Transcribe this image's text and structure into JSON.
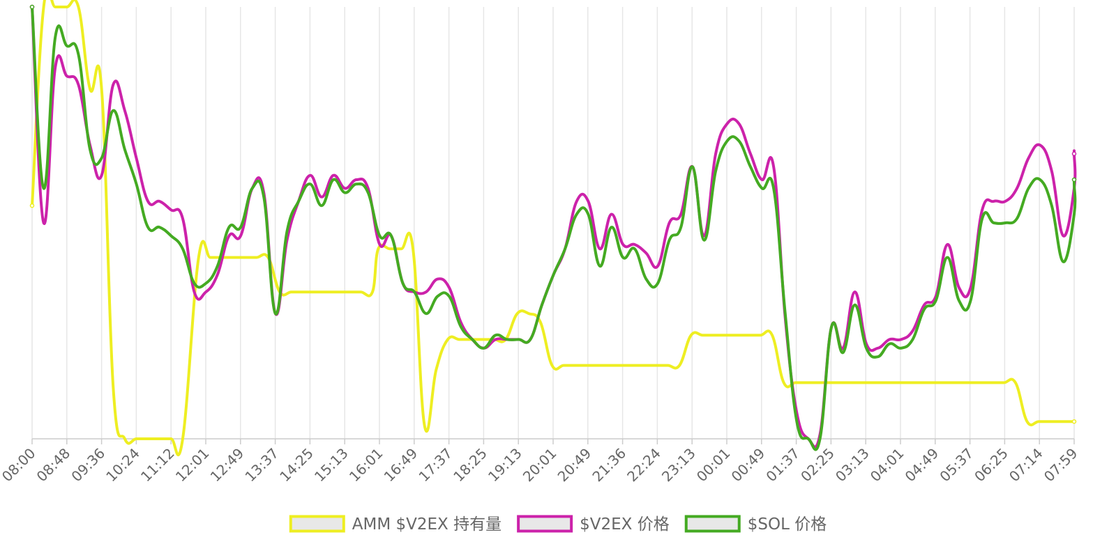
{
  "chart_data": {
    "type": "line",
    "title": "",
    "xlabel": "",
    "ylabel": "",
    "categories": [
      "08:00",
      "08:48",
      "09:36",
      "10:24",
      "11:12",
      "12:01",
      "12:49",
      "13:37",
      "14:25",
      "15:13",
      "16:01",
      "16:49",
      "17:37",
      "18:25",
      "19:13",
      "20:01",
      "20:49",
      "21:36",
      "22:24",
      "23:13",
      "00:01",
      "00:49",
      "01:37",
      "02:25",
      "03:13",
      "04:01",
      "04:49",
      "05:37",
      "06:25",
      "07:14",
      "07:59"
    ],
    "x_range": [
      0,
      1439
    ],
    "grid": true,
    "legend_position": "bottom-center",
    "series": [
      {
        "name": "AMM $V2EX 持有量",
        "color": "#eeee22",
        "values": [
          [
            0,
            54
          ],
          [
            16,
            100
          ],
          [
            32,
            100
          ],
          [
            48,
            100
          ],
          [
            64,
            100
          ],
          [
            80,
            81
          ],
          [
            96,
            81
          ],
          [
            112,
            12
          ],
          [
            128,
            0
          ],
          [
            144,
            0
          ],
          [
            160,
            0
          ],
          [
            176,
            0
          ],
          [
            192,
            0
          ],
          [
            208,
            0
          ],
          [
            230,
            42
          ],
          [
            246,
            42
          ],
          [
            262,
            42
          ],
          [
            278,
            42
          ],
          [
            294,
            42
          ],
          [
            310,
            42
          ],
          [
            326,
            42
          ],
          [
            342,
            34
          ],
          [
            358,
            34
          ],
          [
            374,
            34
          ],
          [
            390,
            34
          ],
          [
            406,
            34
          ],
          [
            422,
            34
          ],
          [
            438,
            34
          ],
          [
            454,
            34
          ],
          [
            470,
            34
          ],
          [
            478,
            44
          ],
          [
            494,
            44
          ],
          [
            510,
            44
          ],
          [
            526,
            44
          ],
          [
            542,
            3
          ],
          [
            558,
            16
          ],
          [
            574,
            23
          ],
          [
            590,
            23
          ],
          [
            606,
            23
          ],
          [
            622,
            23
          ],
          [
            638,
            23
          ],
          [
            654,
            23
          ],
          [
            670,
            29
          ],
          [
            686,
            29
          ],
          [
            702,
            27
          ],
          [
            718,
            17
          ],
          [
            734,
            17
          ],
          [
            750,
            17
          ],
          [
            766,
            17
          ],
          [
            782,
            17
          ],
          [
            798,
            17
          ],
          [
            814,
            17
          ],
          [
            830,
            17
          ],
          [
            846,
            17
          ],
          [
            862,
            17
          ],
          [
            878,
            17
          ],
          [
            894,
            17
          ],
          [
            910,
            24
          ],
          [
            926,
            24
          ],
          [
            942,
            24
          ],
          [
            958,
            24
          ],
          [
            974,
            24
          ],
          [
            990,
            24
          ],
          [
            1006,
            24
          ],
          [
            1022,
            24
          ],
          [
            1038,
            13
          ],
          [
            1054,
            13
          ],
          [
            1070,
            13
          ],
          [
            1086,
            13
          ],
          [
            1102,
            13
          ],
          [
            1118,
            13
          ],
          [
            1134,
            13
          ],
          [
            1150,
            13
          ],
          [
            1166,
            13
          ],
          [
            1182,
            13
          ],
          [
            1198,
            13
          ],
          [
            1214,
            13
          ],
          [
            1230,
            13
          ],
          [
            1246,
            13
          ],
          [
            1262,
            13
          ],
          [
            1278,
            13
          ],
          [
            1294,
            13
          ],
          [
            1310,
            13
          ],
          [
            1326,
            13
          ],
          [
            1342,
            13
          ],
          [
            1358,
            13
          ],
          [
            1374,
            4
          ],
          [
            1390,
            4
          ],
          [
            1406,
            4
          ],
          [
            1422,
            4
          ],
          [
            1439,
            4
          ]
        ]
      },
      {
        "name": "$V2EX 价格",
        "color": "#cc22aa",
        "values": [
          [
            0,
            100
          ],
          [
            16,
            50
          ],
          [
            32,
            86
          ],
          [
            48,
            84
          ],
          [
            64,
            82
          ],
          [
            80,
            68
          ],
          [
            96,
            61
          ],
          [
            112,
            82
          ],
          [
            128,
            76
          ],
          [
            144,
            65
          ],
          [
            160,
            55
          ],
          [
            176,
            55
          ],
          [
            192,
            53
          ],
          [
            208,
            51
          ],
          [
            224,
            34
          ],
          [
            240,
            34
          ],
          [
            256,
            38
          ],
          [
            272,
            47
          ],
          [
            288,
            47
          ],
          [
            304,
            58
          ],
          [
            320,
            57
          ],
          [
            336,
            29
          ],
          [
            352,
            46
          ],
          [
            368,
            55
          ],
          [
            384,
            61
          ],
          [
            400,
            56
          ],
          [
            416,
            61
          ],
          [
            432,
            58
          ],
          [
            448,
            60
          ],
          [
            464,
            58
          ],
          [
            480,
            45
          ],
          [
            496,
            47
          ],
          [
            512,
            36
          ],
          [
            528,
            34
          ],
          [
            544,
            34
          ],
          [
            560,
            37
          ],
          [
            576,
            35
          ],
          [
            592,
            27
          ],
          [
            608,
            23
          ],
          [
            624,
            21
          ],
          [
            640,
            23
          ],
          [
            656,
            23
          ],
          [
            672,
            23
          ],
          [
            688,
            23
          ],
          [
            704,
            31
          ],
          [
            720,
            38
          ],
          [
            736,
            44
          ],
          [
            752,
            55
          ],
          [
            768,
            55
          ],
          [
            784,
            44
          ],
          [
            800,
            52
          ],
          [
            816,
            45
          ],
          [
            832,
            45
          ],
          [
            848,
            43
          ],
          [
            864,
            40
          ],
          [
            880,
            50
          ],
          [
            896,
            52
          ],
          [
            912,
            63
          ],
          [
            928,
            47
          ],
          [
            944,
            66
          ],
          [
            960,
            73
          ],
          [
            976,
            73
          ],
          [
            992,
            66
          ],
          [
            1008,
            60
          ],
          [
            1024,
            63
          ],
          [
            1040,
            28
          ],
          [
            1056,
            6
          ],
          [
            1072,
            0
          ],
          [
            1088,
            1
          ],
          [
            1104,
            26
          ],
          [
            1120,
            21
          ],
          [
            1136,
            34
          ],
          [
            1152,
            22
          ],
          [
            1168,
            21
          ],
          [
            1184,
            23
          ],
          [
            1200,
            23
          ],
          [
            1216,
            25
          ],
          [
            1232,
            31
          ],
          [
            1248,
            33
          ],
          [
            1264,
            45
          ],
          [
            1280,
            35
          ],
          [
            1296,
            35
          ],
          [
            1312,
            53
          ],
          [
            1328,
            55
          ],
          [
            1344,
            55
          ],
          [
            1360,
            58
          ],
          [
            1376,
            65
          ],
          [
            1392,
            68
          ],
          [
            1408,
            62
          ],
          [
            1424,
            47
          ],
          [
            1440,
            58
          ],
          [
            1456,
            66
          ],
          [
            1472,
            66
          ],
          [
            1488,
            66
          ]
        ]
      },
      {
        "name": "$SOL 价格",
        "color": "#44aa22",
        "values": [
          [
            0,
            100
          ],
          [
            16,
            58
          ],
          [
            32,
            93
          ],
          [
            48,
            91
          ],
          [
            64,
            89
          ],
          [
            80,
            67
          ],
          [
            96,
            65
          ],
          [
            112,
            76
          ],
          [
            128,
            67
          ],
          [
            144,
            59
          ],
          [
            160,
            49
          ],
          [
            176,
            49
          ],
          [
            192,
            47
          ],
          [
            208,
            44
          ],
          [
            224,
            36
          ],
          [
            240,
            36
          ],
          [
            256,
            40
          ],
          [
            272,
            49
          ],
          [
            288,
            49
          ],
          [
            304,
            58
          ],
          [
            320,
            56
          ],
          [
            336,
            29
          ],
          [
            352,
            48
          ],
          [
            368,
            55
          ],
          [
            384,
            59
          ],
          [
            400,
            54
          ],
          [
            416,
            60
          ],
          [
            432,
            57
          ],
          [
            448,
            59
          ],
          [
            464,
            57
          ],
          [
            480,
            47
          ],
          [
            496,
            47
          ],
          [
            512,
            36
          ],
          [
            528,
            34
          ],
          [
            544,
            29
          ],
          [
            560,
            33
          ],
          [
            576,
            33
          ],
          [
            592,
            26
          ],
          [
            608,
            23
          ],
          [
            624,
            21
          ],
          [
            640,
            24
          ],
          [
            656,
            23
          ],
          [
            672,
            23
          ],
          [
            688,
            23
          ],
          [
            704,
            31
          ],
          [
            720,
            38
          ],
          [
            736,
            44
          ],
          [
            752,
            52
          ],
          [
            768,
            52
          ],
          [
            784,
            40
          ],
          [
            800,
            49
          ],
          [
            816,
            42
          ],
          [
            832,
            44
          ],
          [
            848,
            37
          ],
          [
            864,
            36
          ],
          [
            880,
            46
          ],
          [
            896,
            49
          ],
          [
            912,
            63
          ],
          [
            928,
            46
          ],
          [
            944,
            62
          ],
          [
            960,
            69
          ],
          [
            976,
            69
          ],
          [
            992,
            63
          ],
          [
            1008,
            58
          ],
          [
            1024,
            58
          ],
          [
            1040,
            29
          ],
          [
            1056,
            4
          ],
          [
            1072,
            0
          ],
          [
            1088,
            0
          ],
          [
            1104,
            26
          ],
          [
            1120,
            20
          ],
          [
            1136,
            31
          ],
          [
            1152,
            21
          ],
          [
            1168,
            19
          ],
          [
            1184,
            22
          ],
          [
            1200,
            21
          ],
          [
            1216,
            23
          ],
          [
            1232,
            30
          ],
          [
            1248,
            32
          ],
          [
            1264,
            42
          ],
          [
            1280,
            32
          ],
          [
            1296,
            32
          ],
          [
            1312,
            51
          ],
          [
            1328,
            50
          ],
          [
            1344,
            50
          ],
          [
            1360,
            51
          ],
          [
            1376,
            58
          ],
          [
            1392,
            60
          ],
          [
            1408,
            54
          ],
          [
            1424,
            41
          ],
          [
            1440,
            52
          ],
          [
            1456,
            59
          ],
          [
            1472,
            59
          ],
          [
            1488,
            60
          ]
        ]
      }
    ]
  }
}
